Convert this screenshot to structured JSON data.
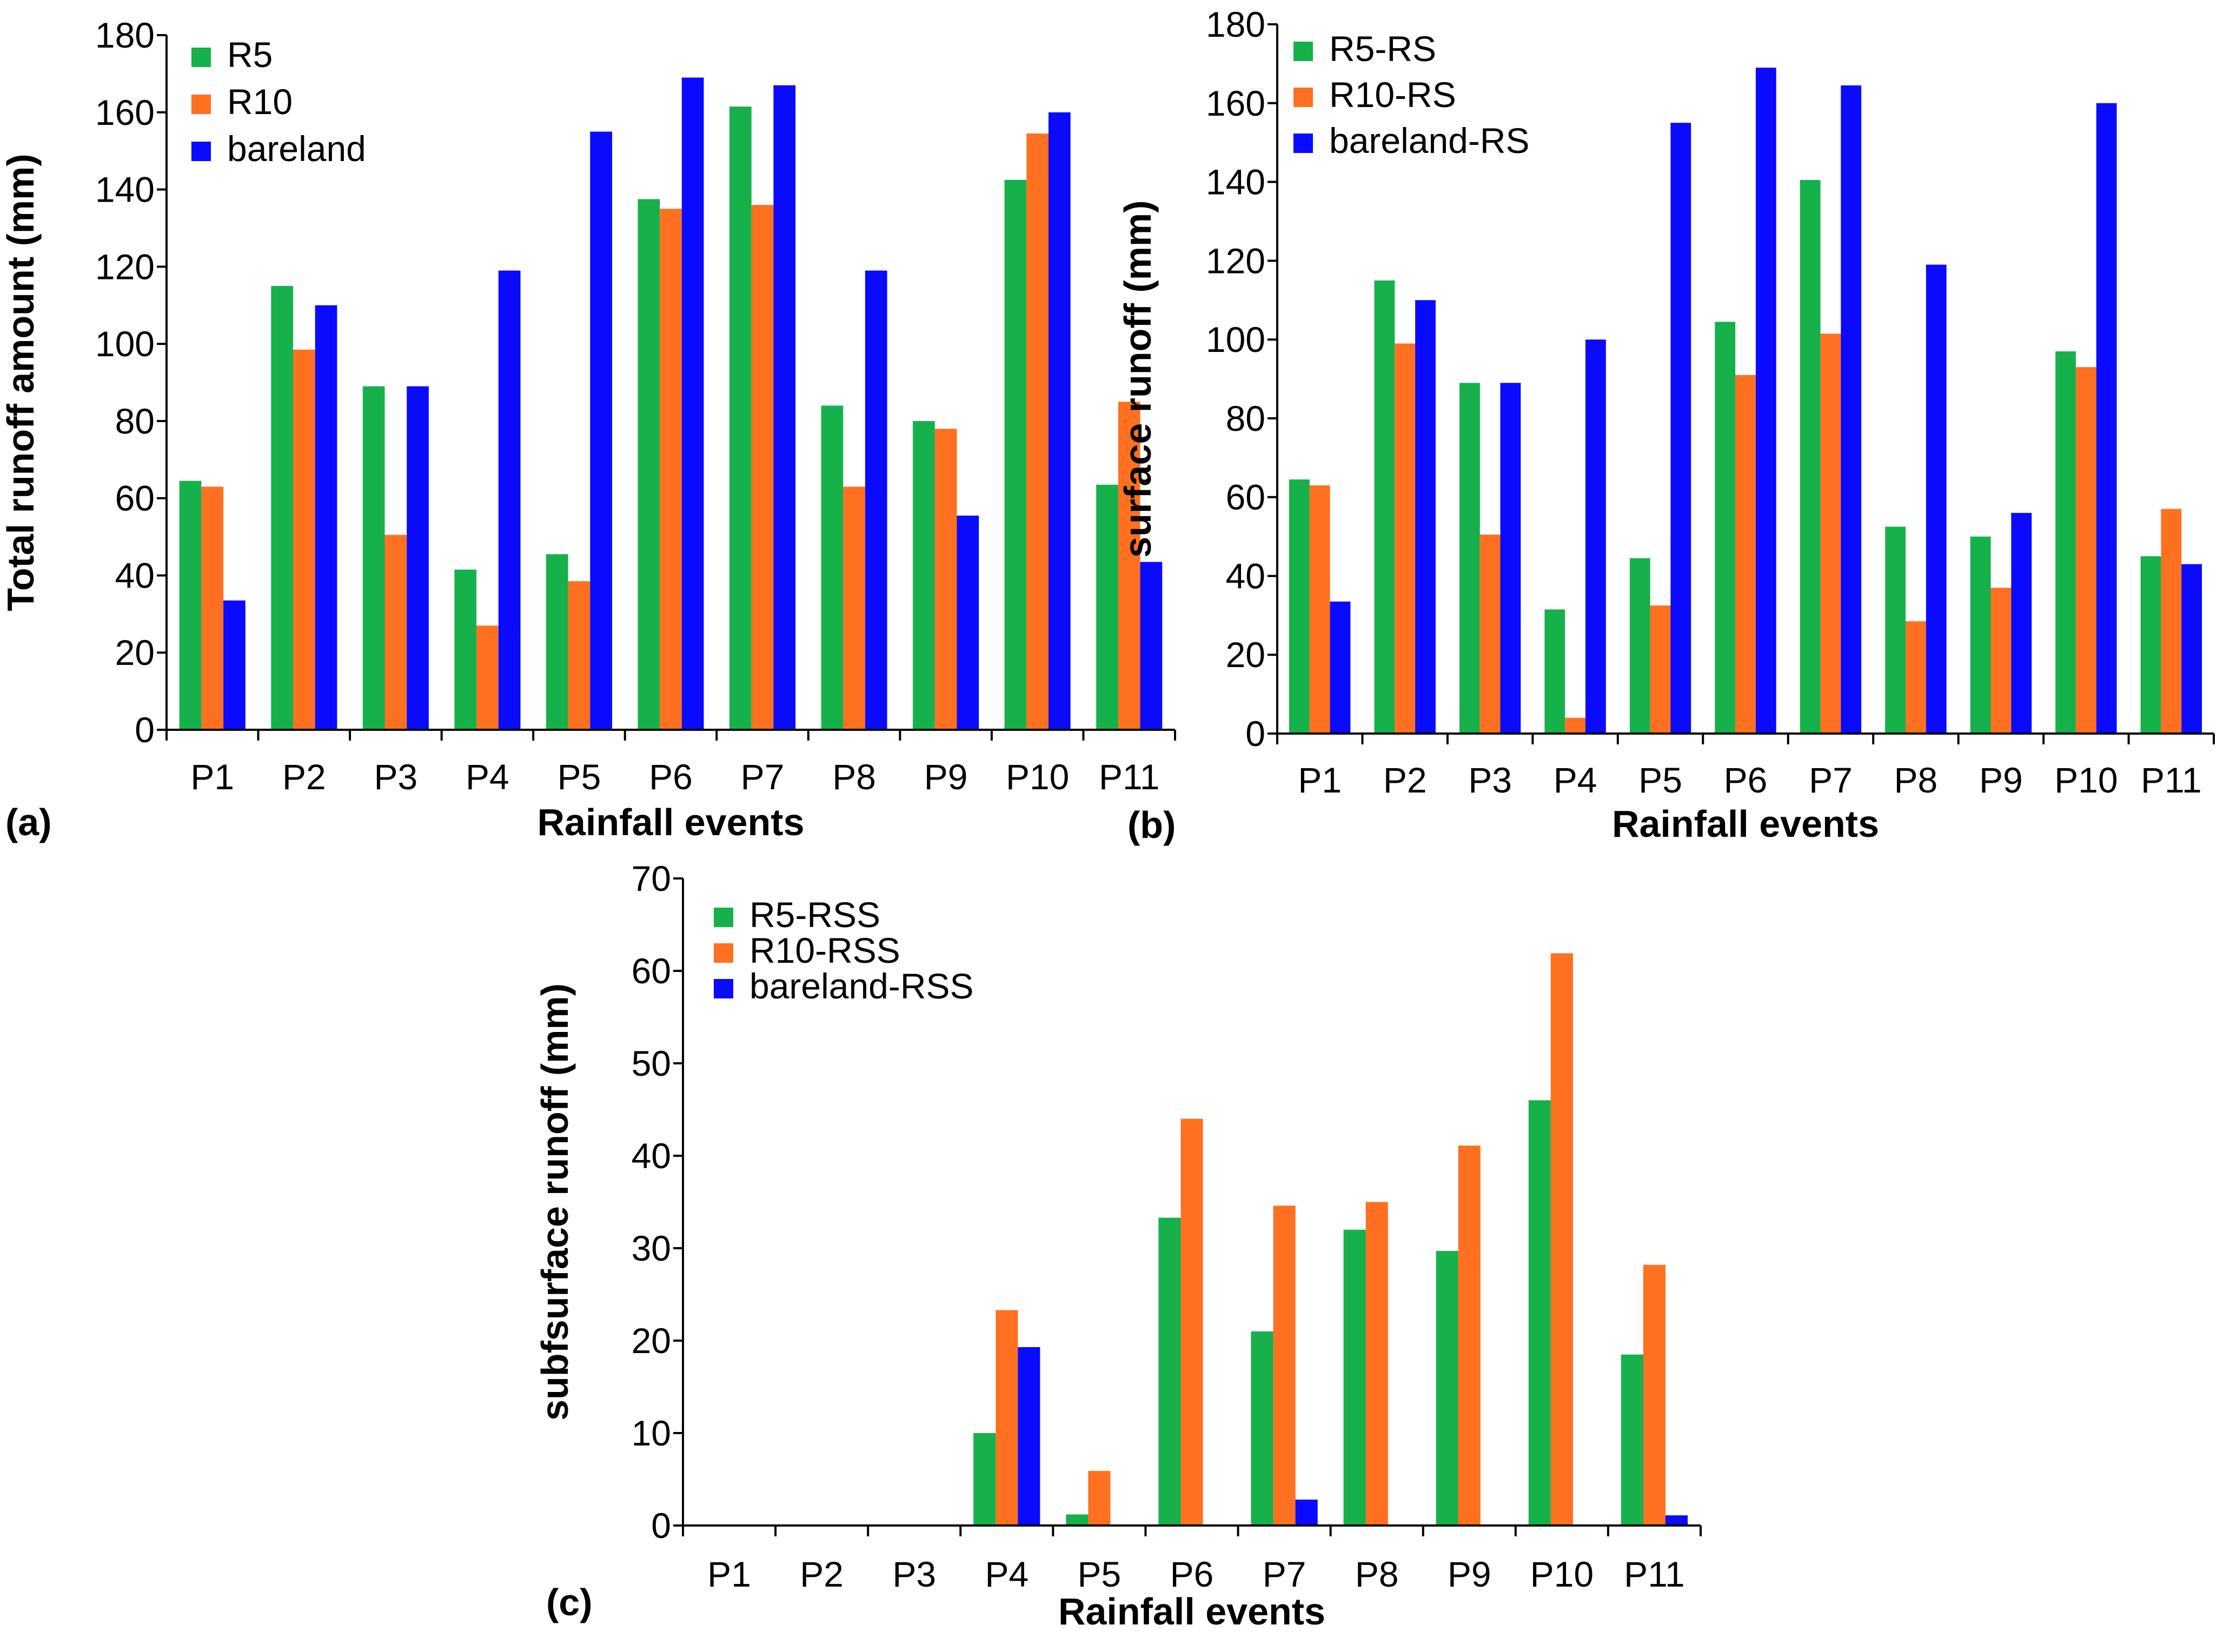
{
  "chart_data": [
    {
      "type": "bar",
      "panel_label": "(a)",
      "title": "",
      "xlabel": "Rainfall events",
      "ylabel": "Total runoff amount (mm)",
      "ylim": [
        0,
        180
      ],
      "ytick_step": 20,
      "yticks": [
        "0",
        "20",
        "40",
        "60",
        "80",
        "100",
        "120",
        "140",
        "160",
        "180"
      ],
      "grid": false,
      "legend_position": "top-left",
      "categories": [
        "P1",
        "P2",
        "P3",
        "P4",
        "P5",
        "P6",
        "P7",
        "P8",
        "P9",
        "P10",
        "P11"
      ],
      "series": [
        {
          "name": "R5",
          "color": "#16b14b",
          "values": [
            64.5,
            115,
            89,
            41.5,
            45.5,
            137.5,
            161.5,
            84,
            80,
            142.5,
            63.5
          ]
        },
        {
          "name": "R10",
          "color": "#ff7020",
          "values": [
            63,
            98.5,
            50.5,
            27,
            38.5,
            135,
            136,
            63,
            78,
            154.5,
            85
          ]
        },
        {
          "name": "bareland",
          "color": "#0a0aff",
          "values": [
            33.5,
            110,
            89,
            119,
            155,
            169,
            167,
            119,
            55.5,
            160,
            43.5
          ]
        }
      ]
    },
    {
      "type": "bar",
      "panel_label": "(b)",
      "title": "",
      "xlabel": "Rainfall events",
      "ylabel": "surface runoff (mm)",
      "ylim": [
        0,
        180
      ],
      "ytick_step": 20,
      "yticks": [
        "0",
        "20",
        "40",
        "60",
        "80",
        "100",
        "120",
        "140",
        "160",
        "180"
      ],
      "grid": false,
      "legend_position": "top-left",
      "categories": [
        "P1",
        "P2",
        "P3",
        "P4",
        "P5",
        "P6",
        "P7",
        "P8",
        "P9",
        "P10",
        "P11"
      ],
      "series": [
        {
          "name": "R5-RS",
          "color": "#16b14b",
          "values": [
            64.5,
            115,
            89,
            31.5,
            44.5,
            104.5,
            140.5,
            52.5,
            50,
            97,
            45
          ]
        },
        {
          "name": "R10-RS",
          "color": "#ff7020",
          "values": [
            63,
            99,
            50.5,
            4,
            32.5,
            91,
            101.5,
            28.5,
            37,
            93,
            57
          ]
        },
        {
          "name": "bareland-RS",
          "color": "#0a0aff",
          "values": [
            33.5,
            110,
            89,
            100,
            155,
            169,
            164.5,
            119,
            56,
            160,
            43
          ]
        }
      ]
    },
    {
      "type": "bar",
      "panel_label": "(c)",
      "title": "",
      "xlabel": "Rainfall events",
      "ylabel": "subfsurface runoff (mm)",
      "ylim": [
        0,
        70
      ],
      "ytick_step": 10,
      "yticks": [
        "0",
        "10",
        "20",
        "30",
        "40",
        "50",
        "60",
        "70"
      ],
      "grid": false,
      "legend_position": "top-left",
      "categories": [
        "P1",
        "P2",
        "P3",
        "P4",
        "P5",
        "P6",
        "P7",
        "P8",
        "P9",
        "P10",
        "P11"
      ],
      "series": [
        {
          "name": "R5-RSS",
          "color": "#16b14b",
          "values": [
            0,
            0,
            0,
            10,
            1.2,
            33.3,
            21,
            32,
            29.7,
            46,
            18.5
          ]
        },
        {
          "name": "R10-RSS",
          "color": "#ff7020",
          "values": [
            0,
            0,
            0,
            23.3,
            5.9,
            44,
            34.6,
            35,
            41.1,
            61.9,
            28.2
          ]
        },
        {
          "name": "bareland-RSS",
          "color": "#0a0aff",
          "values": [
            0,
            0,
            0,
            19.3,
            0,
            0,
            2.8,
            0,
            0,
            0,
            1.1
          ]
        }
      ]
    }
  ]
}
